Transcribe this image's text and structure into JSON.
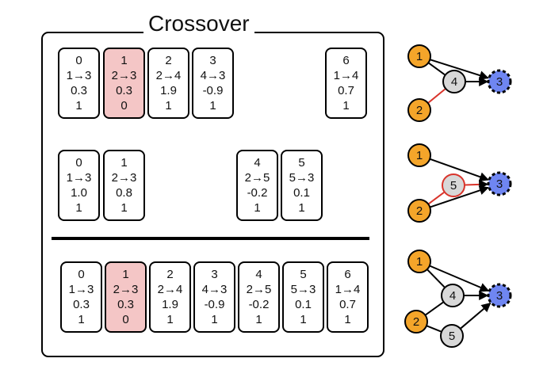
{
  "title": "Crossover",
  "parent1": [
    {
      "id": "0",
      "conn": "1→3",
      "weight": "0.3",
      "enabled": "1",
      "highlight": false
    },
    {
      "id": "1",
      "conn": "2→3",
      "weight": "0.3",
      "enabled": "0",
      "highlight": true
    },
    {
      "id": "2",
      "conn": "2→4",
      "weight": "1.9",
      "enabled": "1",
      "highlight": false
    },
    {
      "id": "3",
      "conn": "4→3",
      "weight": "-0.9",
      "enabled": "1",
      "highlight": false
    },
    {
      "id": "6",
      "conn": "1→4",
      "weight": "0.7",
      "enabled": "1",
      "highlight": false
    }
  ],
  "parent2": [
    {
      "id": "0",
      "conn": "1→3",
      "weight": "1.0",
      "enabled": "1",
      "highlight": false
    },
    {
      "id": "1",
      "conn": "2→3",
      "weight": "0.8",
      "enabled": "1",
      "highlight": false
    },
    {
      "id": "4",
      "conn": "2→5",
      "weight": "-0.2",
      "enabled": "1",
      "highlight": false
    },
    {
      "id": "5",
      "conn": "5→3",
      "weight": "0.1",
      "enabled": "1",
      "highlight": false
    }
  ],
  "child": [
    {
      "id": "0",
      "conn": "1→3",
      "weight": "0.3",
      "enabled": "1",
      "highlight": false
    },
    {
      "id": "1",
      "conn": "2→3",
      "weight": "0.3",
      "enabled": "0",
      "highlight": true
    },
    {
      "id": "2",
      "conn": "2→4",
      "weight": "1.9",
      "enabled": "1",
      "highlight": false
    },
    {
      "id": "3",
      "conn": "4→3",
      "weight": "-0.9",
      "enabled": "1",
      "highlight": false
    },
    {
      "id": "4",
      "conn": "2→5",
      "weight": "-0.2",
      "enabled": "1",
      "highlight": false
    },
    {
      "id": "5",
      "conn": "5→3",
      "weight": "0.1",
      "enabled": "1",
      "highlight": false
    },
    {
      "id": "6",
      "conn": "1→4",
      "weight": "0.7",
      "enabled": "1",
      "highlight": false
    }
  ],
  "graphs": [
    {
      "nodes": [
        {
          "label": "1",
          "type": "input"
        },
        {
          "label": "2",
          "type": "input"
        },
        {
          "label": "4",
          "type": "hidden",
          "highlight": false
        },
        {
          "label": "3",
          "type": "output"
        }
      ],
      "edges": [
        {
          "from": "1",
          "to": "4",
          "highlight": false
        },
        {
          "from": "1",
          "to": "3",
          "highlight": false
        },
        {
          "from": "4",
          "to": "3",
          "highlight": false
        },
        {
          "from": "2",
          "to": "4",
          "highlight": true
        }
      ]
    },
    {
      "nodes": [
        {
          "label": "1",
          "type": "input"
        },
        {
          "label": "2",
          "type": "input"
        },
        {
          "label": "5",
          "type": "hidden",
          "highlight": true
        },
        {
          "label": "3",
          "type": "output"
        }
      ],
      "edges": [
        {
          "from": "1",
          "to": "3",
          "highlight": false
        },
        {
          "from": "2",
          "to": "3",
          "highlight": false
        },
        {
          "from": "2",
          "to": "5",
          "highlight": true
        },
        {
          "from": "5",
          "to": "3",
          "highlight": true
        }
      ]
    },
    {
      "nodes": [
        {
          "label": "1",
          "type": "input"
        },
        {
          "label": "2",
          "type": "input"
        },
        {
          "label": "4",
          "type": "hidden",
          "highlight": false
        },
        {
          "label": "5",
          "type": "hidden",
          "highlight": false
        },
        {
          "label": "3",
          "type": "output"
        }
      ],
      "edges": [
        {
          "from": "1",
          "to": "4",
          "highlight": false
        },
        {
          "from": "1",
          "to": "3",
          "highlight": false
        },
        {
          "from": "4",
          "to": "3",
          "highlight": false
        },
        {
          "from": "2",
          "to": "4",
          "highlight": false
        },
        {
          "from": "2",
          "to": "5",
          "highlight": false
        },
        {
          "from": "5",
          "to": "3",
          "highlight": false
        }
      ]
    }
  ],
  "colors": {
    "input": "#f4a52a",
    "hidden": "#d8d8d8",
    "output": "#6f86f2",
    "highlight_edge": "#d9342b",
    "highlight_gene": "#f4c6c6"
  }
}
